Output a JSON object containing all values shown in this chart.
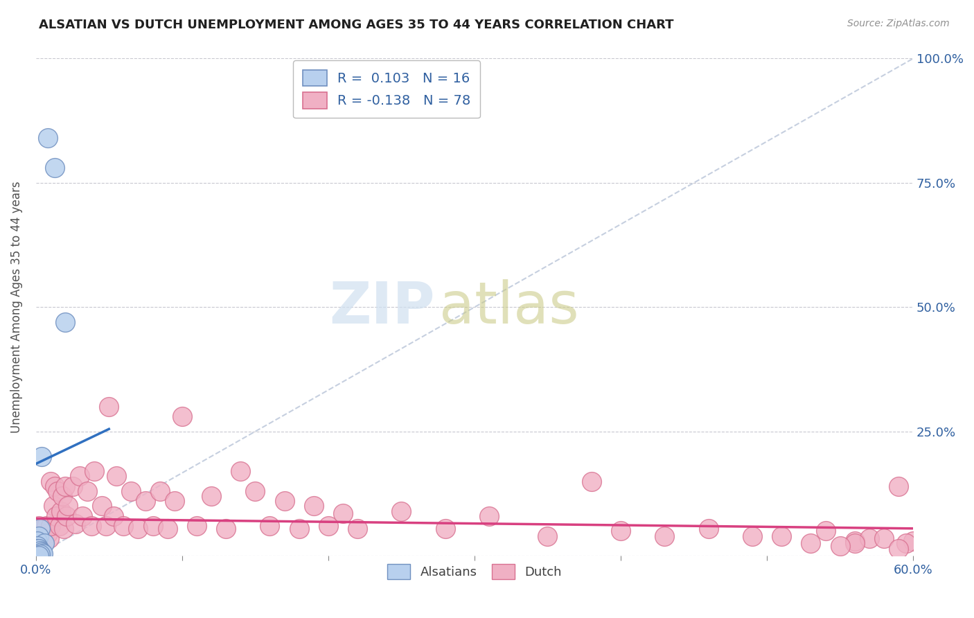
{
  "title": "ALSATIAN VS DUTCH UNEMPLOYMENT AMONG AGES 35 TO 44 YEARS CORRELATION CHART",
  "source": "Source: ZipAtlas.com",
  "ylabel": "Unemployment Among Ages 35 to 44 years",
  "xlim": [
    0.0,
    0.6
  ],
  "ylim": [
    0.0,
    1.0
  ],
  "xticks": [
    0.0,
    0.1,
    0.2,
    0.3,
    0.4,
    0.5,
    0.6
  ],
  "xticklabels": [
    "0.0%",
    "",
    "",
    "",
    "",
    "",
    "60.0%"
  ],
  "yticks": [
    0.0,
    0.25,
    0.5,
    0.75,
    1.0
  ],
  "yticklabels_right": [
    "",
    "25.0%",
    "50.0%",
    "75.0%",
    "100.0%"
  ],
  "background_color": "#ffffff",
  "plot_bg_color": "#ffffff",
  "grid_color": "#c8c8d0",
  "alsatian_color": "#b8d0ee",
  "alsatian_edge_color": "#7090c0",
  "dutch_color": "#f0b0c4",
  "dutch_edge_color": "#d87090",
  "alsatian_R": 0.103,
  "alsatian_N": 16,
  "dutch_R": -0.138,
  "dutch_N": 78,
  "alsatian_line_color": "#3070c0",
  "dutch_line_color": "#d84080",
  "ref_line_color": "#b8c4d8",
  "watermark_zip_color": "#d0e0f0",
  "watermark_atlas_color": "#c8c880",
  "alsatian_x": [
    0.008,
    0.013,
    0.02,
    0.004,
    0.003,
    0.002,
    0.001,
    0.006,
    0.001,
    0.001,
    0.002,
    0.003,
    0.004,
    0.005,
    0.003,
    0.002
  ],
  "alsatian_y": [
    0.84,
    0.78,
    0.47,
    0.2,
    0.055,
    0.04,
    0.03,
    0.025,
    0.02,
    0.015,
    0.015,
    0.01,
    0.008,
    0.005,
    0.003,
    0.001
  ],
  "dutch_x": [
    0.001,
    0.001,
    0.002,
    0.002,
    0.003,
    0.004,
    0.005,
    0.005,
    0.007,
    0.008,
    0.009,
    0.01,
    0.01,
    0.012,
    0.013,
    0.014,
    0.015,
    0.016,
    0.017,
    0.018,
    0.019,
    0.02,
    0.021,
    0.022,
    0.025,
    0.027,
    0.03,
    0.032,
    0.035,
    0.038,
    0.04,
    0.045,
    0.048,
    0.05,
    0.053,
    0.055,
    0.06,
    0.065,
    0.07,
    0.075,
    0.08,
    0.085,
    0.09,
    0.095,
    0.1,
    0.11,
    0.12,
    0.13,
    0.14,
    0.15,
    0.16,
    0.17,
    0.18,
    0.19,
    0.2,
    0.21,
    0.22,
    0.25,
    0.28,
    0.31,
    0.35,
    0.38,
    0.4,
    0.43,
    0.46,
    0.49,
    0.51,
    0.54,
    0.56,
    0.57,
    0.53,
    0.59,
    0.58,
    0.56,
    0.55,
    0.6,
    0.595,
    0.59
  ],
  "dutch_y": [
    0.04,
    0.03,
    0.06,
    0.025,
    0.05,
    0.04,
    0.055,
    0.03,
    0.06,
    0.045,
    0.035,
    0.15,
    0.06,
    0.1,
    0.14,
    0.08,
    0.13,
    0.06,
    0.09,
    0.12,
    0.055,
    0.14,
    0.08,
    0.1,
    0.14,
    0.065,
    0.16,
    0.08,
    0.13,
    0.06,
    0.17,
    0.1,
    0.06,
    0.3,
    0.08,
    0.16,
    0.06,
    0.13,
    0.055,
    0.11,
    0.06,
    0.13,
    0.055,
    0.11,
    0.28,
    0.06,
    0.12,
    0.055,
    0.17,
    0.13,
    0.06,
    0.11,
    0.055,
    0.1,
    0.06,
    0.085,
    0.055,
    0.09,
    0.055,
    0.08,
    0.04,
    0.15,
    0.05,
    0.04,
    0.055,
    0.04,
    0.04,
    0.05,
    0.03,
    0.035,
    0.025,
    0.14,
    0.035,
    0.025,
    0.02,
    0.03,
    0.025,
    0.015
  ]
}
